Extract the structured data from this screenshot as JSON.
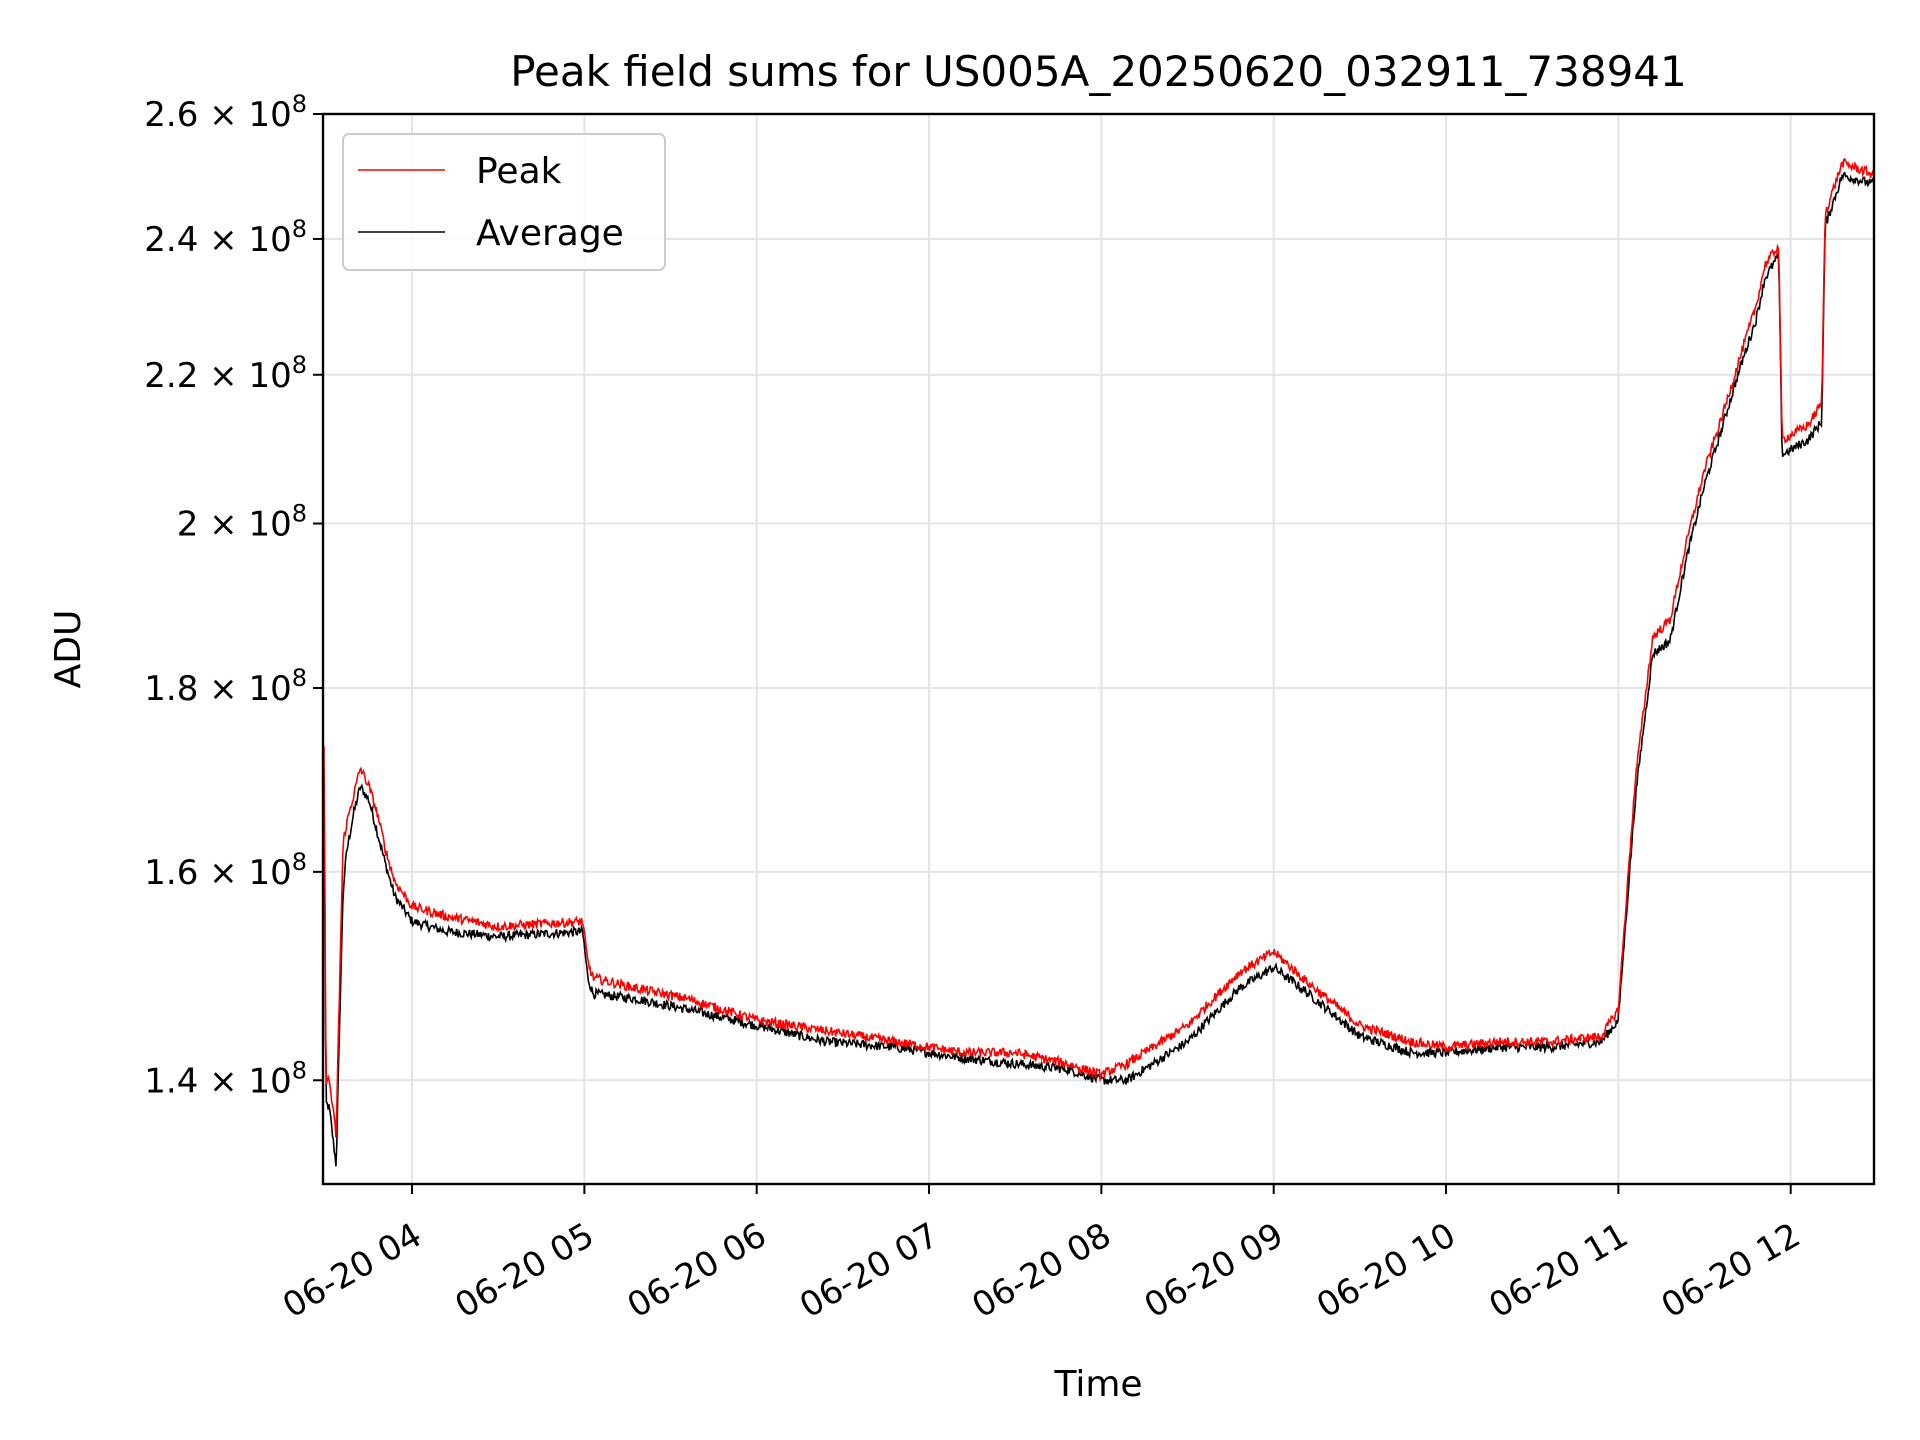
{
  "chart_data": {
    "type": "line",
    "title": "Peak field sums for US005A_20250620_032911_738941",
    "xlabel": "Time",
    "ylabel": "ADU",
    "y_scale": "log",
    "ylim": [
      131000000,
      260000000
    ],
    "xlim": [
      "06-20 03:29",
      "06-20 12:29"
    ],
    "x_ticks": [
      "06-20 04",
      "06-20 05",
      "06-20 06",
      "06-20 07",
      "06-20 08",
      "06-20 09",
      "06-20 10",
      "06-20 11",
      "06-20 12"
    ],
    "y_ticks": [
      140000000,
      160000000,
      180000000,
      200000000,
      220000000,
      240000000,
      260000000
    ],
    "y_tick_labels": [
      {
        "mantissa": "1.4",
        "exp": "8"
      },
      {
        "mantissa": "1.6",
        "exp": "8"
      },
      {
        "mantissa": "1.8",
        "exp": "8"
      },
      {
        "mantissa": "2",
        "exp": "8"
      },
      {
        "mantissa": "2.2",
        "exp": "8"
      },
      {
        "mantissa": "2.4",
        "exp": "8"
      },
      {
        "mantissa": "2.6",
        "exp": "8"
      }
    ],
    "grid": true,
    "legend_position": "top-left",
    "x_unit": "hour",
    "series": [
      {
        "name": "Peak",
        "color": "#ff0000",
        "x": [
          3.49,
          3.5,
          3.52,
          3.56,
          3.6,
          3.62,
          3.66,
          3.7,
          3.75,
          3.8,
          3.85,
          3.9,
          4.0,
          4.2,
          4.5,
          4.99,
          5.02,
          5.05,
          5.3,
          5.6,
          6.0,
          6.4,
          6.8,
          7.2,
          7.5,
          7.8,
          8.0,
          8.15,
          8.5,
          8.8,
          9.0,
          9.2,
          9.5,
          9.8,
          10.0,
          10.3,
          10.6,
          10.9,
          11.0,
          11.05,
          11.1,
          11.2,
          11.3,
          11.4,
          11.5,
          11.6,
          11.7,
          11.8,
          11.85,
          11.93,
          11.95,
          12.1,
          12.18,
          12.2,
          12.3,
          12.49
        ],
        "values": [
          173000000,
          140000000,
          140000000,
          135000000,
          163000000,
          165000000,
          168000000,
          171000000,
          169000000,
          166000000,
          162000000,
          159000000,
          156500000,
          155500000,
          154500000,
          155000000,
          151000000,
          149500000,
          148500000,
          147500000,
          145500000,
          144500000,
          143500000,
          142500000,
          142500000,
          141500000,
          140500000,
          141500000,
          145000000,
          150000000,
          152000000,
          149000000,
          145000000,
          143500000,
          143000000,
          143500000,
          143500000,
          144000000,
          146500000,
          158000000,
          170000000,
          186000000,
          188000000,
          198000000,
          207000000,
          214000000,
          222000000,
          230000000,
          236000000,
          239000000,
          211000000,
          213000000,
          216000000,
          244000000,
          252000000,
          250000000
        ]
      },
      {
        "name": "Average",
        "color": "#000000",
        "x": [
          3.49,
          3.5,
          3.52,
          3.56,
          3.6,
          3.62,
          3.66,
          3.7,
          3.75,
          3.8,
          3.85,
          3.9,
          4.0,
          4.2,
          4.5,
          4.99,
          5.02,
          5.05,
          5.3,
          5.6,
          6.0,
          6.4,
          6.8,
          7.2,
          7.5,
          7.8,
          8.0,
          8.15,
          8.5,
          8.8,
          9.0,
          9.2,
          9.5,
          9.8,
          10.0,
          10.3,
          10.6,
          10.9,
          11.0,
          11.05,
          11.1,
          11.2,
          11.3,
          11.4,
          11.5,
          11.6,
          11.7,
          11.8,
          11.85,
          11.93,
          11.95,
          12.1,
          12.18,
          12.2,
          12.3,
          12.49
        ],
        "values": [
          168000000,
          138000000,
          137500000,
          132500000,
          158000000,
          162000000,
          166000000,
          169000000,
          167500000,
          164000000,
          160500000,
          157500000,
          155000000,
          154000000,
          153500000,
          154000000,
          149500000,
          148000000,
          147500000,
          146500000,
          145000000,
          143500000,
          143000000,
          142000000,
          141500000,
          141000000,
          140000000,
          140000000,
          143500000,
          148500000,
          150500000,
          148000000,
          144000000,
          142500000,
          142500000,
          143000000,
          143000000,
          143500000,
          145500000,
          156500000,
          168000000,
          184000000,
          185500000,
          196000000,
          205000000,
          212500000,
          220500000,
          228000000,
          234000000,
          237500000,
          209000000,
          211000000,
          213500000,
          242000000,
          250000000,
          248500000
        ]
      }
    ]
  }
}
